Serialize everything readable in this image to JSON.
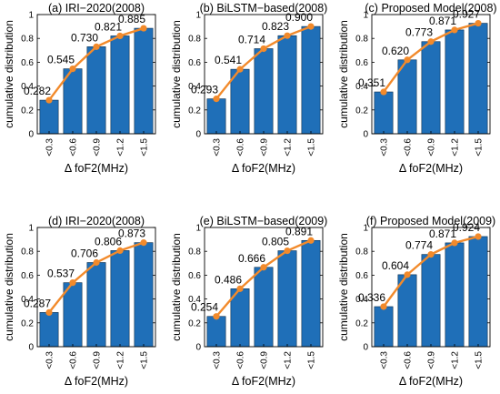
{
  "colors": {
    "bar": "#1f6fb8",
    "bar_edge": "#0b2c4a",
    "line": "#f28a2b",
    "axis": "#000000"
  },
  "chart_data": [
    {
      "type": "bar",
      "title": "(a) IRI−2020(2008)",
      "xlabel": "Δ foF2(MHz)",
      "ylabel": "cumulative distribution",
      "categories": [
        "<0.3",
        "<0.6",
        "<0.9",
        "<1.2",
        "<1.5"
      ],
      "values": [
        0.282,
        0.545,
        0.73,
        0.821,
        0.885
      ],
      "labels": [
        "0.282",
        "0.545",
        "0.730",
        "0.821",
        "0.885"
      ],
      "yticks": [
        "0",
        "0.2",
        "0.4",
        "0.6",
        "0.8",
        "1"
      ],
      "ylim": [
        0,
        1
      ]
    },
    {
      "type": "bar",
      "title": "(b) BiLSTM−based(2008)",
      "xlabel": "Δ foF2(MHz)",
      "ylabel": "cumulative distribution",
      "categories": [
        "<0.3",
        "<0.6",
        "<0.9",
        "<1.2",
        "<1.5"
      ],
      "values": [
        0.293,
        0.541,
        0.714,
        0.823,
        0.9
      ],
      "labels": [
        "0.293",
        "0.541",
        "0.714",
        "0.823",
        "0.900"
      ],
      "yticks": [
        "0",
        "0.2",
        "0.4",
        "0.6",
        "0.8",
        "1"
      ],
      "ylim": [
        0,
        1
      ]
    },
    {
      "type": "bar",
      "title": "(c) Proposed Model(2008)",
      "xlabel": "Δ foF2(MHz)",
      "ylabel": "cumulative distribution",
      "categories": [
        "<0.3",
        "<0.6",
        "<0.9",
        "<1.2",
        "<1.5"
      ],
      "values": [
        0.351,
        0.62,
        0.773,
        0.871,
        0.927
      ],
      "labels": [
        "0.351",
        "0.620",
        "0.773",
        "0.871",
        "0.927"
      ],
      "yticks": [
        "0",
        "0.2",
        "0.4",
        "0.6",
        "0.8",
        "1"
      ],
      "ylim": [
        0,
        1
      ]
    },
    {
      "type": "bar",
      "title": "(d) IRI−2020(2008)",
      "xlabel": "Δ foF2(MHz)",
      "ylabel": "cumulative distribution",
      "categories": [
        "<0.3",
        "<0.6",
        "<0.9",
        "<1.2",
        "<1.5"
      ],
      "values": [
        0.287,
        0.537,
        0.706,
        0.806,
        0.873
      ],
      "labels": [
        "0.287",
        "0.537",
        "0.706",
        "0.806",
        "0.873"
      ],
      "yticks": [
        "0",
        "0.2",
        "0.4",
        "0.6",
        "0.8",
        "1"
      ],
      "ylim": [
        0,
        1
      ]
    },
    {
      "type": "bar",
      "title": "(e) BiLSTM−based(2009)",
      "xlabel": "Δ foF2(MHz)",
      "ylabel": "cumulative distribution",
      "categories": [
        "<0.3",
        "<0.6",
        "<0.9",
        "<1.2",
        "<1.5"
      ],
      "values": [
        0.254,
        0.486,
        0.666,
        0.805,
        0.891
      ],
      "labels": [
        "0.254",
        "0.486",
        "0.666",
        "0.805",
        "0.891"
      ],
      "yticks": [
        "0",
        "0.2",
        "0.4",
        "0.6",
        "0.8",
        "1"
      ],
      "ylim": [
        0,
        1
      ]
    },
    {
      "type": "bar",
      "title": "(f) Proposed Model(2009)",
      "xlabel": "Δ foF2(MHz)",
      "ylabel": "cumulative distribution",
      "categories": [
        "<0.3",
        "<0.6",
        "<0.9",
        "<1.2",
        "<1.5"
      ],
      "values": [
        0.336,
        0.604,
        0.774,
        0.871,
        0.924
      ],
      "labels": [
        "0.336",
        "0.604",
        "0.774",
        "0.871",
        "0.924"
      ],
      "yticks": [
        "0",
        "0.2",
        "0.4",
        "0.6",
        "0.8",
        "1"
      ],
      "ylim": [
        0,
        1
      ]
    }
  ]
}
